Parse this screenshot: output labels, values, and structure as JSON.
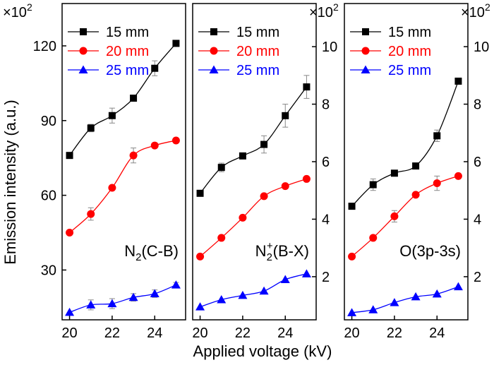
{
  "chart_data": [
    {
      "type": "line",
      "panel_label": "N₂(C-B)",
      "label_main": "N",
      "label_sub": "2",
      "label_sup": "",
      "label_rest": "(C-B)",
      "axis_side": "left",
      "multiplier": "×10",
      "multiplier_exp": "2",
      "ylim": [
        10,
        137
      ],
      "yticks": [
        30,
        60,
        90,
        120
      ],
      "x": [
        20,
        21,
        22,
        23,
        24,
        25
      ],
      "xlim": [
        19.65,
        25.45
      ],
      "xticks": [
        20,
        22,
        24
      ],
      "series": [
        {
          "name": "15 mm",
          "color": "#000000",
          "marker": "square",
          "values": [
            76,
            87,
            92,
            99,
            111,
            121
          ],
          "errors": [
            0,
            1.5,
            3,
            0,
            3,
            0
          ]
        },
        {
          "name": "20 mm",
          "color": "#ff0000",
          "marker": "circle",
          "values": [
            45,
            52.5,
            63,
            76,
            80,
            82
          ],
          "errors": [
            0,
            2.5,
            0,
            3,
            0,
            0
          ]
        },
        {
          "name": "25 mm",
          "color": "#0000ff",
          "marker": "triangle",
          "values": [
            13,
            16,
            16.5,
            19,
            20.5,
            24
          ],
          "errors": [
            0,
            2,
            2,
            1.5,
            1.5,
            1
          ]
        }
      ]
    },
    {
      "type": "line",
      "panel_label": "N₂⁺(B-X)",
      "label_main": "N",
      "label_sub": "2",
      "label_sup": "+",
      "label_rest": "(B-X)",
      "axis_side": "right",
      "multiplier": "×10",
      "multiplier_exp": "2",
      "ylim": [
        0.5,
        11.5
      ],
      "yticks": [
        2,
        4,
        6,
        8,
        10
      ],
      "x": [
        20,
        21,
        22,
        23,
        24,
        25
      ],
      "xlim": [
        19.65,
        25.45
      ],
      "xticks": [
        20,
        22,
        24
      ],
      "series": [
        {
          "name": "15 mm",
          "color": "#000000",
          "marker": "square",
          "values": [
            4.9,
            5.8,
            6.2,
            6.6,
            7.6,
            8.6
          ],
          "errors": [
            0,
            0.15,
            0,
            0.3,
            0.4,
            0.4
          ]
        },
        {
          "name": "20 mm",
          "color": "#ff0000",
          "marker": "circle",
          "values": [
            2.7,
            3.35,
            4.05,
            4.8,
            5.15,
            5.4
          ],
          "errors": [
            0,
            0,
            0,
            0,
            0,
            0
          ]
        },
        {
          "name": "25 mm",
          "color": "#0000ff",
          "marker": "triangle",
          "values": [
            0.95,
            1.2,
            1.35,
            1.5,
            1.9,
            2.1
          ],
          "errors": [
            0,
            0,
            0,
            0,
            0,
            0
          ]
        }
      ]
    },
    {
      "type": "line",
      "panel_label": "O(3p-3s)",
      "label_main": "O(3p-3s)",
      "label_sub": "",
      "label_sup": "",
      "label_rest": "",
      "axis_side": "right",
      "multiplier": "×10",
      "multiplier_exp": "2",
      "ylim": [
        0.5,
        11.5
      ],
      "yticks": [
        2,
        4,
        6,
        8,
        10
      ],
      "x": [
        20,
        21,
        22,
        23,
        24,
        25
      ],
      "xlim": [
        19.65,
        25.45
      ],
      "xticks": [
        20,
        22,
        24
      ],
      "series": [
        {
          "name": "15 mm",
          "color": "#000000",
          "marker": "square",
          "values": [
            4.45,
            5.2,
            5.6,
            5.85,
            6.9,
            8.8
          ],
          "errors": [
            0,
            0.2,
            0,
            0,
            0.2,
            0
          ]
        },
        {
          "name": "20 mm",
          "color": "#ff0000",
          "marker": "circle",
          "values": [
            2.7,
            3.35,
            4.1,
            4.85,
            5.25,
            5.5
          ],
          "errors": [
            0,
            0,
            0.2,
            0,
            0.25,
            0
          ]
        },
        {
          "name": "25 mm",
          "color": "#0000ff",
          "marker": "triangle",
          "values": [
            0.75,
            0.85,
            1.1,
            1.3,
            1.4,
            1.65
          ],
          "errors": [
            0,
            0,
            0,
            0,
            0,
            0
          ]
        }
      ]
    }
  ],
  "axes": {
    "ylabel": "Emission intensity (a.u.)",
    "xlabel": "Applied voltage (kV)"
  }
}
